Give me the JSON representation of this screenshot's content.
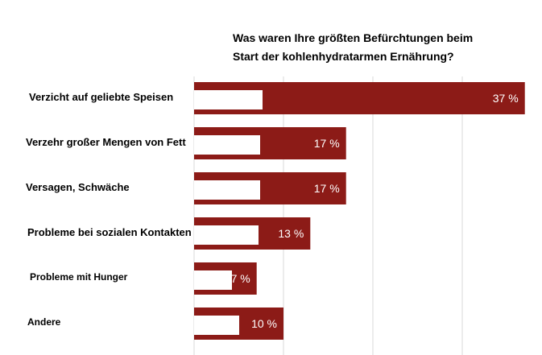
{
  "chart_data": {
    "type": "bar",
    "orientation": "horizontal",
    "title_lines": [
      "Was waren Ihre größten Befürchtungen beim",
      "Start der kohlenhydratarmen Ernährung?"
    ],
    "categories": [
      "Verzicht auf geliebte Speisen",
      "Verzehr großer Mengen von Fett",
      "Versagen, Schwäche",
      "Probleme bei sozialen Kontakten",
      "Probleme mit Hunger",
      "Andere"
    ],
    "values": [
      37,
      17,
      17,
      13,
      7,
      10
    ],
    "data_labels": [
      "37 %",
      "17 %",
      "17 %",
      "13 %",
      "7 %",
      "10 %"
    ],
    "xlim": [
      0,
      40
    ],
    "grid": true,
    "legend": "none",
    "colors": {
      "bar": "#8c1b17",
      "inner_box": "#ffffff",
      "grid": "#d9d9d9",
      "value_text": "#ffffff"
    }
  }
}
